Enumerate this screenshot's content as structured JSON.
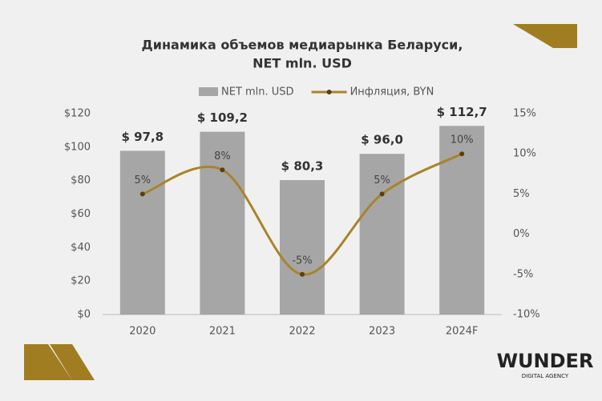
{
  "chart_data": {
    "type": "bar_line",
    "title": "Динамика объемов медиарынка Беларуси,",
    "subtitle": "NET mln. USD",
    "categories": [
      "2020",
      "2021",
      "2022",
      "2023",
      "2024F"
    ],
    "series": [
      {
        "name": "NET mln. USD",
        "color": "#a6a6a6",
        "type": "bar",
        "values": [
          97.8,
          109.2,
          80.3,
          96.0,
          112.7
        ],
        "value_labels": [
          "$ 97,8",
          "$ 109,2",
          "$ 80,3",
          "$ 96,0",
          "$ 112,7"
        ]
      },
      {
        "name": "Инфляция, BYN",
        "color": "#a8842a",
        "type": "line",
        "axis": "y2",
        "values": [
          5,
          8,
          -5,
          5,
          10
        ],
        "value_labels": [
          "5%",
          "8%",
          "-5%",
          "5%",
          "10%"
        ]
      }
    ],
    "ylim": [
      0,
      120
    ],
    "yticks": [
      {
        "value": 0,
        "label": "$0"
      },
      {
        "value": 20,
        "label": "$20"
      },
      {
        "value": 40,
        "label": "$40"
      },
      {
        "value": 60,
        "label": "$60"
      },
      {
        "value": 80,
        "label": "$80"
      },
      {
        "value": 100,
        "label": "$100"
      },
      {
        "value": 120,
        "label": "$120"
      }
    ],
    "y2lim": [
      -10,
      15
    ],
    "y2ticks": [
      {
        "value": -10,
        "label": "-10%"
      },
      {
        "value": -5,
        "label": "-5%"
      },
      {
        "value": 0,
        "label": "0%"
      },
      {
        "value": 5,
        "label": "5%"
      },
      {
        "value": 10,
        "label": "10%"
      },
      {
        "value": 15,
        "label": "15%"
      }
    ],
    "legend": "top"
  },
  "brand": {
    "name": "WUNDER",
    "tagline": "DIGITAL AGENCY"
  }
}
